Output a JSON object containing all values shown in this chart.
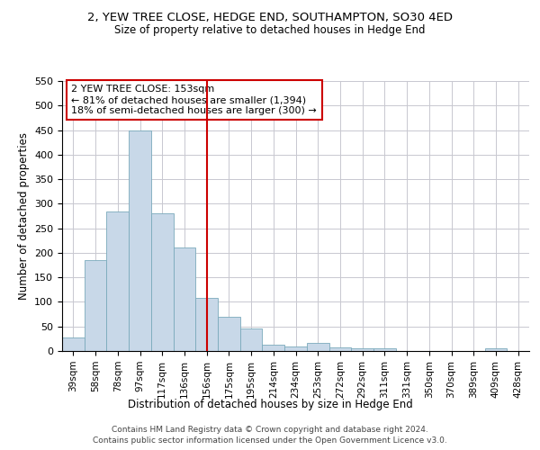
{
  "title": "2, YEW TREE CLOSE, HEDGE END, SOUTHAMPTON, SO30 4ED",
  "subtitle": "Size of property relative to detached houses in Hedge End",
  "xlabel": "Distribution of detached houses by size in Hedge End",
  "ylabel": "Number of detached properties",
  "bar_color": "#c8d8e8",
  "bar_edge_color": "#7aaabb",
  "vline_color": "#cc0000",
  "vline_x": 6,
  "annotation_text": "2 YEW TREE CLOSE: 153sqm\n← 81% of detached houses are smaller (1,394)\n18% of semi-detached houses are larger (300) →",
  "annotation_box_color": "#ffffff",
  "annotation_box_edge": "#cc0000",
  "categories": [
    "39sqm",
    "58sqm",
    "78sqm",
    "97sqm",
    "117sqm",
    "136sqm",
    "156sqm",
    "175sqm",
    "195sqm",
    "214sqm",
    "234sqm",
    "253sqm",
    "272sqm",
    "292sqm",
    "311sqm",
    "331sqm",
    "350sqm",
    "370sqm",
    "389sqm",
    "409sqm",
    "428sqm"
  ],
  "values": [
    28,
    185,
    285,
    450,
    280,
    210,
    108,
    70,
    45,
    13,
    10,
    17,
    8,
    5,
    5,
    0,
    0,
    0,
    0,
    5,
    0
  ],
  "ylim": [
    0,
    550
  ],
  "yticks": [
    0,
    50,
    100,
    150,
    200,
    250,
    300,
    350,
    400,
    450,
    500,
    550
  ],
  "footer1": "Contains HM Land Registry data © Crown copyright and database right 2024.",
  "footer2": "Contains public sector information licensed under the Open Government Licence v3.0.",
  "bg_color": "#ffffff",
  "grid_color": "#c8c8d0"
}
